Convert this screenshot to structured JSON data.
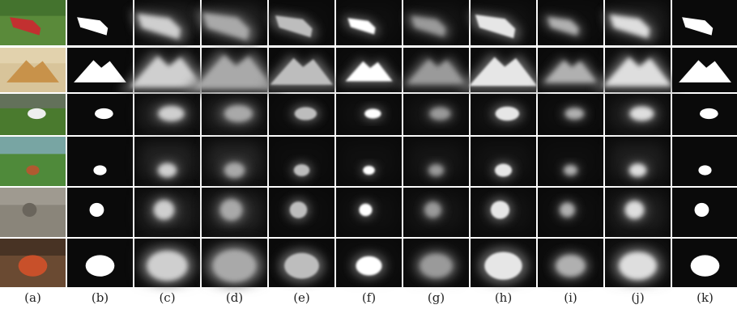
{
  "figure": {
    "column_labels": [
      "(a)",
      "(b)",
      "(c)",
      "(d)",
      "(e)",
      "(f)",
      "(g)",
      "(h)",
      "(i)",
      "(j)",
      "(k)"
    ]
  }
}
